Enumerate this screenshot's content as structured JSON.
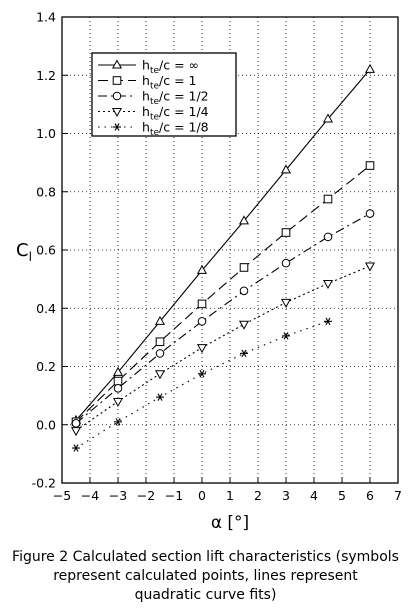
{
  "chart_data": {
    "type": "line",
    "title": "",
    "xlabel": "α [°]",
    "ylabel": "C",
    "ylabel_sub": "l",
    "xlim": [
      -5,
      7
    ],
    "ylim": [
      -0.2,
      1.4
    ],
    "xticks": [
      -5,
      -4,
      -3,
      -2,
      -1,
      0,
      1,
      2,
      3,
      4,
      5,
      6,
      7
    ],
    "yticks": [
      "-0.2",
      "0.0",
      "0.2",
      "0.4",
      "0.6",
      "0.8",
      "1.0",
      "1.2",
      "1.4"
    ],
    "grid": true,
    "legend_position": "top-left",
    "series": [
      {
        "name": "h_te/c = ∞",
        "name_main": "h",
        "name_sub": "te",
        "name_rest": "/c = ∞",
        "marker": "triangle-up",
        "line_style": "solid",
        "x": [
          -4.5,
          -3,
          -1.5,
          0,
          1.5,
          3,
          4.5,
          6
        ],
        "y": [
          0.015,
          0.18,
          0.355,
          0.53,
          0.7,
          0.875,
          1.05,
          1.22
        ]
      },
      {
        "name": "h_te/c = 1",
        "name_main": "h",
        "name_sub": "te",
        "name_rest": "/c = 1",
        "marker": "square",
        "line_style": "dashed",
        "x": [
          -4.5,
          -3,
          -1.5,
          0,
          1.5,
          3,
          4.5,
          6
        ],
        "y": [
          0.01,
          0.15,
          0.285,
          0.415,
          0.54,
          0.66,
          0.775,
          0.89
        ]
      },
      {
        "name": "h_te/c = 1/2",
        "name_main": "h",
        "name_sub": "te",
        "name_rest": "/c = 1/2",
        "marker": "circle",
        "line_style": "dash-dot",
        "x": [
          -4.5,
          -3,
          -1.5,
          0,
          1.5,
          3,
          4.5,
          6
        ],
        "y": [
          0.005,
          0.125,
          0.245,
          0.355,
          0.46,
          0.555,
          0.645,
          0.725
        ]
      },
      {
        "name": "h_te/c = 1/4",
        "name_main": "h",
        "name_sub": "te",
        "name_rest": "/c = 1/4",
        "marker": "triangle-down",
        "line_style": "dotted",
        "x": [
          -4.5,
          -3,
          -1.5,
          0,
          1.5,
          3,
          4.5,
          6
        ],
        "y": [
          -0.02,
          0.08,
          0.175,
          0.265,
          0.345,
          0.42,
          0.485,
          0.545
        ]
      },
      {
        "name": "h_te/c = 1/8",
        "name_main": "h",
        "name_sub": "te",
        "name_rest": "/c = 1/8",
        "marker": "asterisk",
        "line_style": "sparse-dotted",
        "x": [
          -4.5,
          -3,
          -1.5,
          0,
          1.5,
          3,
          4.5
        ],
        "y": [
          -0.08,
          0.01,
          0.095,
          0.175,
          0.245,
          0.305,
          0.355
        ]
      }
    ]
  },
  "caption": {
    "line1": "Figure 2 Calculated section lift characteristics (symbols",
    "line2": "represent calculated points, lines represent",
    "line3": "quadratic curve fits)"
  }
}
